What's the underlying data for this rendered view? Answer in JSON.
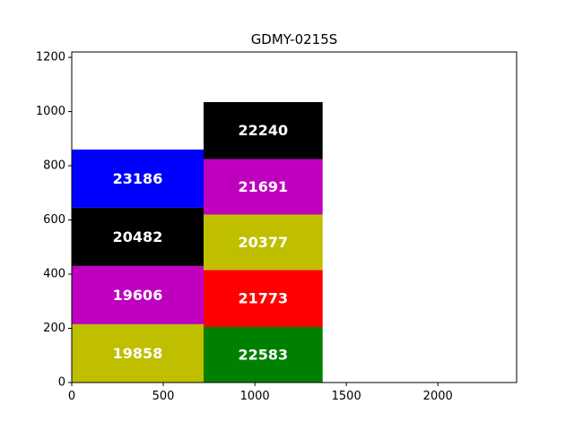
{
  "chart_data": {
    "type": "bar",
    "title": "GDMY-0215S",
    "xlabel": "",
    "ylabel": "",
    "xlim": [
      0,
      2430
    ],
    "ylim": [
      0,
      1220
    ],
    "xticks": [
      0,
      500,
      1000,
      1500,
      2000
    ],
    "yticks": [
      0,
      200,
      400,
      600,
      800,
      1000,
      1200
    ],
    "grid": false,
    "boxes": [
      {
        "label": "19858",
        "x0": 0,
        "x1": 720,
        "y0": 0,
        "y1": 215,
        "color": "#bfbf00"
      },
      {
        "label": "19606",
        "x0": 0,
        "x1": 720,
        "y0": 215,
        "y1": 430,
        "color": "#bf00bf"
      },
      {
        "label": "20482",
        "x0": 0,
        "x1": 720,
        "y0": 430,
        "y1": 645,
        "color": "#000000"
      },
      {
        "label": "23186",
        "x0": 0,
        "x1": 720,
        "y0": 645,
        "y1": 860,
        "color": "#0000ff"
      },
      {
        "label": "22583",
        "x0": 720,
        "x1": 1370,
        "y0": 0,
        "y1": 205,
        "color": "#008000"
      },
      {
        "label": "21773",
        "x0": 720,
        "x1": 1370,
        "y0": 205,
        "y1": 415,
        "color": "#ff0000"
      },
      {
        "label": "20377",
        "x0": 720,
        "x1": 1370,
        "y0": 415,
        "y1": 620,
        "color": "#bfbf00"
      },
      {
        "label": "21691",
        "x0": 720,
        "x1": 1370,
        "y0": 620,
        "y1": 825,
        "color": "#bf00bf"
      },
      {
        "label": "22240",
        "x0": 720,
        "x1": 1370,
        "y0": 825,
        "y1": 1035,
        "color": "#000000"
      }
    ]
  }
}
